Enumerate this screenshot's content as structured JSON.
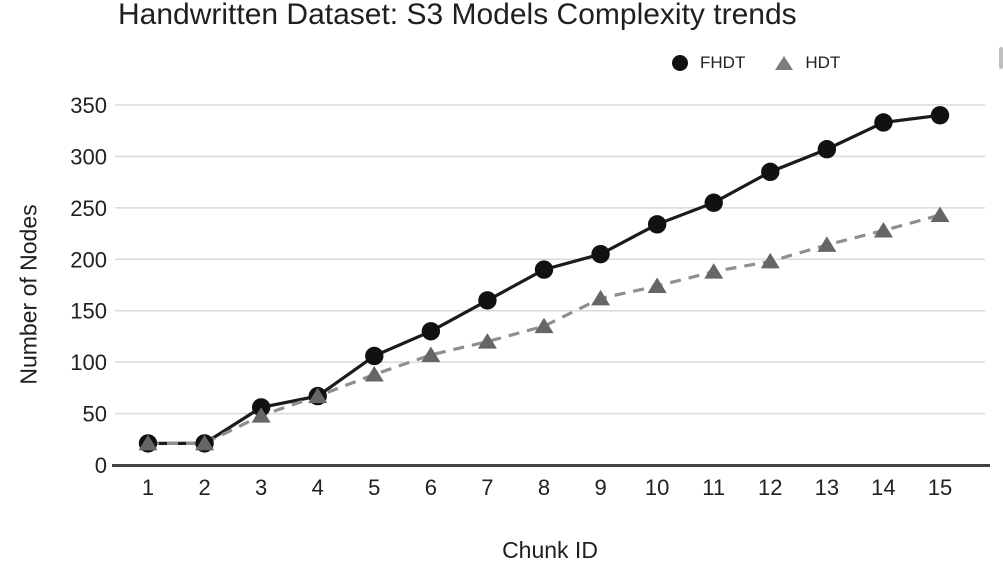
{
  "chart_data": {
    "type": "line",
    "title": "Handwritten Dataset: S3 Models Complexity trends",
    "xlabel": "Chunk ID",
    "ylabel": "Number of Nodes",
    "categories": [
      1,
      2,
      3,
      4,
      5,
      6,
      7,
      8,
      9,
      10,
      11,
      12,
      13,
      14,
      15
    ],
    "series": [
      {
        "name": "FHDT",
        "marker": "circle",
        "line_style": "solid",
        "line_color": "#1b1b1b",
        "marker_color": "#111111",
        "values": [
          21,
          21,
          56,
          67,
          106,
          130,
          160,
          190,
          205,
          234,
          255,
          285,
          307,
          333,
          340
        ]
      },
      {
        "name": "HDT",
        "marker": "triangle",
        "line_style": "dashed",
        "line_color": "#8f8f8f",
        "marker_color": "#666666",
        "values": [
          21,
          21,
          48,
          67,
          88,
          107,
          120,
          135,
          162,
          174,
          188,
          198,
          214,
          228,
          243
        ]
      }
    ],
    "ylim": [
      0,
      350
    ],
    "ytick_step": 50,
    "grid": true,
    "legend_position": "top-right",
    "gridline_color": "#d9d9d9",
    "axis_color": "#424242"
  }
}
